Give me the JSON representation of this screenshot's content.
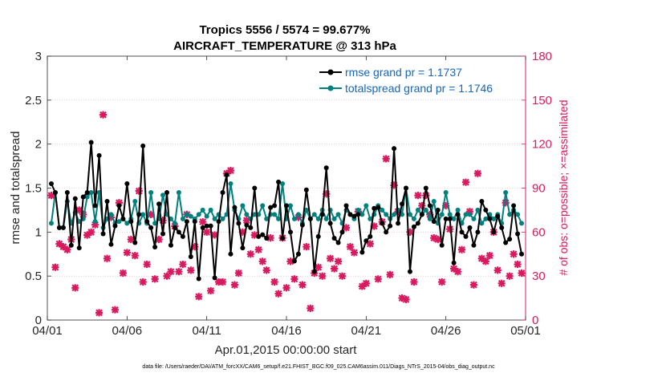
{
  "chart_data": {
    "type": "line",
    "title": "Tropics 5556 / 5574 = 99.677%",
    "subtitle": "AIRCRAFT_TEMPERATURE @ 313 hPa",
    "xlabel": "Apr.01,2015 00:00:00 start",
    "ylabel": "rmse and totalspread",
    "y2label": "# of obs: o=possible; ×=assimilated",
    "footnote": "data file: /Users/raeder/DAI/ATM_forcXX/CAM6_setup/f.e21.FHIST_BGC.f09_025.CAM6assim.011/Diags_NTrS_2015-04/obs_diag_output.nc",
    "xlim": [
      0,
      30
    ],
    "ylim": [
      0,
      3
    ],
    "y2lim": [
      0,
      180
    ],
    "x_ticks": [
      0,
      5,
      10,
      15,
      20,
      25,
      30
    ],
    "x_tick_labels": [
      "04/01",
      "04/06",
      "04/11",
      "04/16",
      "04/21",
      "04/26",
      "05/01"
    ],
    "y_ticks": [
      0,
      0.5,
      1,
      1.5,
      2,
      2.5,
      3
    ],
    "y_tick_labels": [
      "0",
      "0.5",
      "1",
      "1.5",
      "2",
      "2.5",
      "3"
    ],
    "y2_ticks": [
      0,
      30,
      60,
      90,
      120,
      150,
      180
    ],
    "y2_tick_labels": [
      "0",
      "30",
      "60",
      "90",
      "120",
      "150",
      "180"
    ],
    "legend_position": "top-right",
    "x": [
      0.25,
      0.5,
      0.75,
      1.0,
      1.25,
      1.5,
      1.75,
      2.0,
      2.25,
      2.5,
      2.75,
      3.0,
      3.25,
      3.5,
      3.75,
      4.0,
      4.25,
      4.5,
      4.75,
      5.0,
      5.25,
      5.5,
      5.75,
      6.0,
      6.25,
      6.5,
      6.75,
      7.0,
      7.25,
      7.5,
      7.75,
      8.0,
      8.25,
      8.5,
      8.75,
      9.0,
      9.25,
      9.5,
      9.75,
      10.0,
      10.25,
      10.5,
      10.75,
      11.0,
      11.25,
      11.5,
      11.75,
      12.0,
      12.25,
      12.5,
      12.75,
      13.0,
      13.25,
      13.5,
      13.75,
      14.0,
      14.25,
      14.5,
      14.75,
      15.0,
      15.25,
      15.5,
      15.75,
      16.0,
      16.25,
      16.5,
      16.75,
      17.0,
      17.25,
      17.5,
      17.75,
      18.0,
      18.25,
      18.5,
      18.75,
      19.0,
      19.25,
      19.5,
      19.75,
      20.0,
      20.25,
      20.5,
      20.75,
      21.0,
      21.25,
      21.5,
      21.75,
      22.0,
      22.25,
      22.5,
      22.75,
      23.0,
      23.25,
      23.5,
      23.75,
      24.0,
      24.25,
      24.5,
      24.75,
      25.0,
      25.25,
      25.5,
      25.75,
      26.0,
      26.25,
      26.5,
      26.75,
      27.0,
      27.25,
      27.5,
      27.75,
      28.0,
      28.25,
      28.5,
      28.75,
      29.0,
      29.25,
      29.5,
      29.75
    ],
    "series": [
      {
        "name": "rmse grand pr = 1.1737",
        "color": "#000000",
        "values": [
          1.55,
          1.45,
          1.05,
          1.05,
          1.45,
          0.85,
          1.38,
          0.82,
          1.4,
          1.45,
          2.02,
          1.3,
          1.87,
          0.98,
          1.35,
          0.86,
          1.07,
          1.3,
          1.15,
          1.55,
          1.12,
          0.88,
          1.2,
          1.98,
          1.12,
          1.05,
          0.83,
          1.32,
          0.98,
          1.45,
          0.85,
          1.05,
          1.0,
          0.95,
          1.12,
          0.72,
          1.12,
          0.47,
          1.05,
          1.07,
          1.07,
          0.48,
          1.12,
          1.45,
          1.65,
          0.75,
          1.28,
          1.1,
          0.82,
          1.08,
          1.05,
          1.5,
          0.95,
          0.97,
          0.93,
          1.28,
          1.3,
          1.57,
          0.93,
          1.3,
          1.0,
          0.67,
          0.75,
          1.08,
          1.48,
          1.15,
          0.55,
          0.95,
          1.2,
          1.73,
          1.1,
          0.93,
          0.88,
          1.0,
          1.3,
          1.2,
          1.18,
          1.2,
          0.77,
          0.9,
          0.95,
          1.27,
          1.28,
          1.1,
          1.0,
          1.07,
          1.95,
          1.1,
          1.32,
          1.5,
          0.55,
          1.06,
          1.1,
          1.2,
          1.5,
          1.3,
          1.12,
          1.25,
          0.85,
          1.15,
          1.15,
          0.65,
          1.2,
          1.0,
          0.95,
          1.05,
          0.85,
          1.0,
          1.35,
          1.25,
          1.15,
          1.0,
          1.18,
          1.05,
          0.88,
          0.92,
          1.3,
          0.98,
          0.75
        ]
      },
      {
        "name": "totalspread grand pr = 1.1746",
        "color": "#00807f",
        "values": [
          1.1,
          1.45,
          1.05,
          1.05,
          1.35,
          1.1,
          1.22,
          1.12,
          1.15,
          1.4,
          1.45,
          1.12,
          1.45,
          1.05,
          1.15,
          1.2,
          1.1,
          1.12,
          1.15,
          1.1,
          1.15,
          1.35,
          1.1,
          1.2,
          1.1,
          1.45,
          1.1,
          1.15,
          1.42,
          1.2,
          1.15,
          1.1,
          1.45,
          1.15,
          1.2,
          1.18,
          1.15,
          1.2,
          1.25,
          1.18,
          1.25,
          1.15,
          1.2,
          1.15,
          1.2,
          1.55,
          1.25,
          1.15,
          1.3,
          1.2,
          1.15,
          1.2,
          1.2,
          1.3,
          1.15,
          1.2,
          1.2,
          1.15,
          1.55,
          1.15,
          1.3,
          1.15,
          1.2,
          1.1,
          1.25,
          1.15,
          1.2,
          1.15,
          1.25,
          1.15,
          1.25,
          1.15,
          1.2,
          1.1,
          1.25,
          1.2,
          1.15,
          1.25,
          1.2,
          1.3,
          1.15,
          1.2,
          1.3,
          1.25,
          1.2,
          1.15,
          1.2,
          1.25,
          1.2,
          1.5,
          1.2,
          1.15,
          1.25,
          1.2,
          1.25,
          1.15,
          1.35,
          1.1,
          1.2,
          1.45,
          1.2,
          1.15,
          1.25,
          1.1,
          1.2,
          1.2,
          1.15,
          1.25,
          1.1,
          1.15,
          1.2,
          1.15,
          1.2,
          1.1,
          1.45,
          1.2,
          1.25,
          1.2,
          1.1
        ]
      }
    ],
    "obs_possible": {
      "name": "o=possible",
      "color": "#d81b60",
      "values": [
        85,
        36,
        52,
        50,
        48,
        55,
        22,
        75,
        72,
        58,
        60,
        65,
        5,
        140,
        42,
        70,
        7,
        80,
        32,
        46,
        55,
        44,
        88,
        26,
        38,
        72,
        28,
        55,
        68,
        30,
        33,
        64,
        33,
        38,
        72,
        34,
        50,
        16,
        67,
        60,
        20,
        58,
        26,
        26,
        100,
        102,
        24,
        32,
        60,
        68,
        45,
        58,
        48,
        40,
        34,
        56,
        26,
        18,
        56,
        22,
        40,
        28,
        70,
        24,
        50,
        8,
        32,
        36,
        30,
        86,
        42,
        35,
        40,
        30,
        63,
        50,
        46,
        74,
        23,
        25,
        52,
        64,
        28,
        67,
        110,
        31,
        92,
        74,
        15,
        14,
        60,
        26,
        85,
        78,
        85,
        72,
        56,
        55,
        26,
        78,
        62,
        35,
        33,
        48,
        94,
        74,
        24,
        100,
        42,
        40,
        44,
        60,
        34,
        25,
        80,
        30,
        45,
        38,
        32
      ]
    },
    "obs_assimilated": {
      "name": "×=assimilated",
      "color": "#d81b60",
      "values": [
        85,
        36,
        52,
        50,
        48,
        55,
        22,
        75,
        72,
        58,
        60,
        65,
        5,
        140,
        42,
        70,
        7,
        80,
        32,
        46,
        55,
        44,
        88,
        26,
        38,
        72,
        28,
        55,
        68,
        30,
        33,
        64,
        33,
        38,
        72,
        34,
        50,
        16,
        67,
        60,
        20,
        58,
        26,
        26,
        100,
        102,
        24,
        32,
        60,
        68,
        45,
        58,
        48,
        40,
        34,
        56,
        26,
        18,
        56,
        22,
        40,
        28,
        70,
        24,
        50,
        8,
        32,
        36,
        30,
        86,
        42,
        35,
        40,
        30,
        63,
        50,
        46,
        74,
        23,
        25,
        52,
        64,
        28,
        67,
        110,
        31,
        92,
        74,
        15,
        14,
        60,
        26,
        85,
        78,
        85,
        72,
        56,
        55,
        26,
        78,
        62,
        35,
        33,
        48,
        94,
        74,
        24,
        100,
        42,
        40,
        44,
        60,
        34,
        25,
        80,
        30,
        45,
        38,
        32
      ]
    }
  }
}
